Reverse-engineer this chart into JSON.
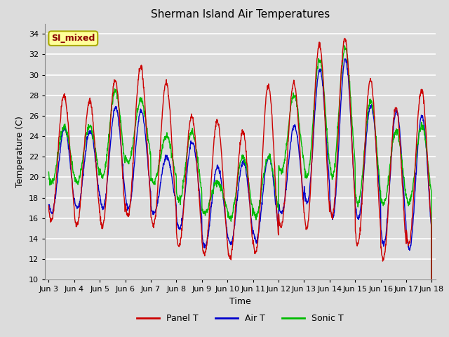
{
  "title": "Sherman Island Air Temperatures",
  "xlabel": "Time",
  "ylabel": "Temperature (C)",
  "ylim": [
    10,
    35
  ],
  "xlim_days": [
    2.85,
    18.15
  ],
  "annotation": "SI_mixed",
  "bg_color": "#dcdcdc",
  "fig_color": "#dcdcdc",
  "legend_entries": [
    "Panel T",
    "Air T",
    "Sonic T"
  ],
  "colors": {
    "panel": "#cc0000",
    "air": "#0000cc",
    "sonic": "#00bb00"
  },
  "grid_color": "#ffffff",
  "tick_labels": [
    "Jun 3",
    "Jun 4",
    "Jun 5",
    "Jun 6",
    "Jun 7",
    "Jun 8",
    "Jun 9",
    "Jun 10",
    "Jun 11",
    "Jun 12",
    "Jun 13",
    "Jun 14",
    "Jun 15",
    "Jun 16",
    "Jun 17",
    "Jun 18"
  ],
  "tick_positions": [
    3,
    4,
    5,
    6,
    7,
    8,
    9,
    10,
    11,
    12,
    13,
    14,
    15,
    16,
    17,
    18
  ],
  "yticks": [
    10,
    12,
    14,
    16,
    18,
    20,
    22,
    24,
    26,
    28,
    30,
    32,
    34
  ],
  "panel_peaks": [
    28.0,
    27.5,
    29.5,
    30.8,
    29.2,
    26.0,
    25.5,
    24.5,
    29.0,
    29.2,
    33.0,
    33.5,
    29.5,
    26.8,
    28.5
  ],
  "panel_troughs": [
    15.8,
    15.3,
    15.2,
    16.2,
    15.3,
    13.3,
    12.4,
    12.2,
    12.6,
    15.2,
    15.0,
    16.2,
    13.5,
    12.0,
    13.5
  ],
  "air_peaks": [
    24.8,
    24.5,
    26.8,
    26.5,
    22.0,
    23.5,
    21.0,
    21.5,
    22.0,
    25.0,
    30.5,
    31.5,
    27.0,
    26.5,
    26.0
  ],
  "air_troughs": [
    16.5,
    17.0,
    17.0,
    17.0,
    16.5,
    15.0,
    13.3,
    13.5,
    13.8,
    16.5,
    17.5,
    16.0,
    16.0,
    13.5,
    13.0
  ],
  "sonic_peaks": [
    25.0,
    25.0,
    28.5,
    27.5,
    24.0,
    24.5,
    19.5,
    22.0,
    22.0,
    28.0,
    31.5,
    32.5,
    27.5,
    24.5,
    25.0
  ],
  "sonic_troughs": [
    19.5,
    19.5,
    20.0,
    21.5,
    19.5,
    17.8,
    16.5,
    16.0,
    16.2,
    20.5,
    20.0,
    20.0,
    17.5,
    17.5,
    17.5
  ],
  "peak_phase": 0.6,
  "trough_phase": 0.17
}
